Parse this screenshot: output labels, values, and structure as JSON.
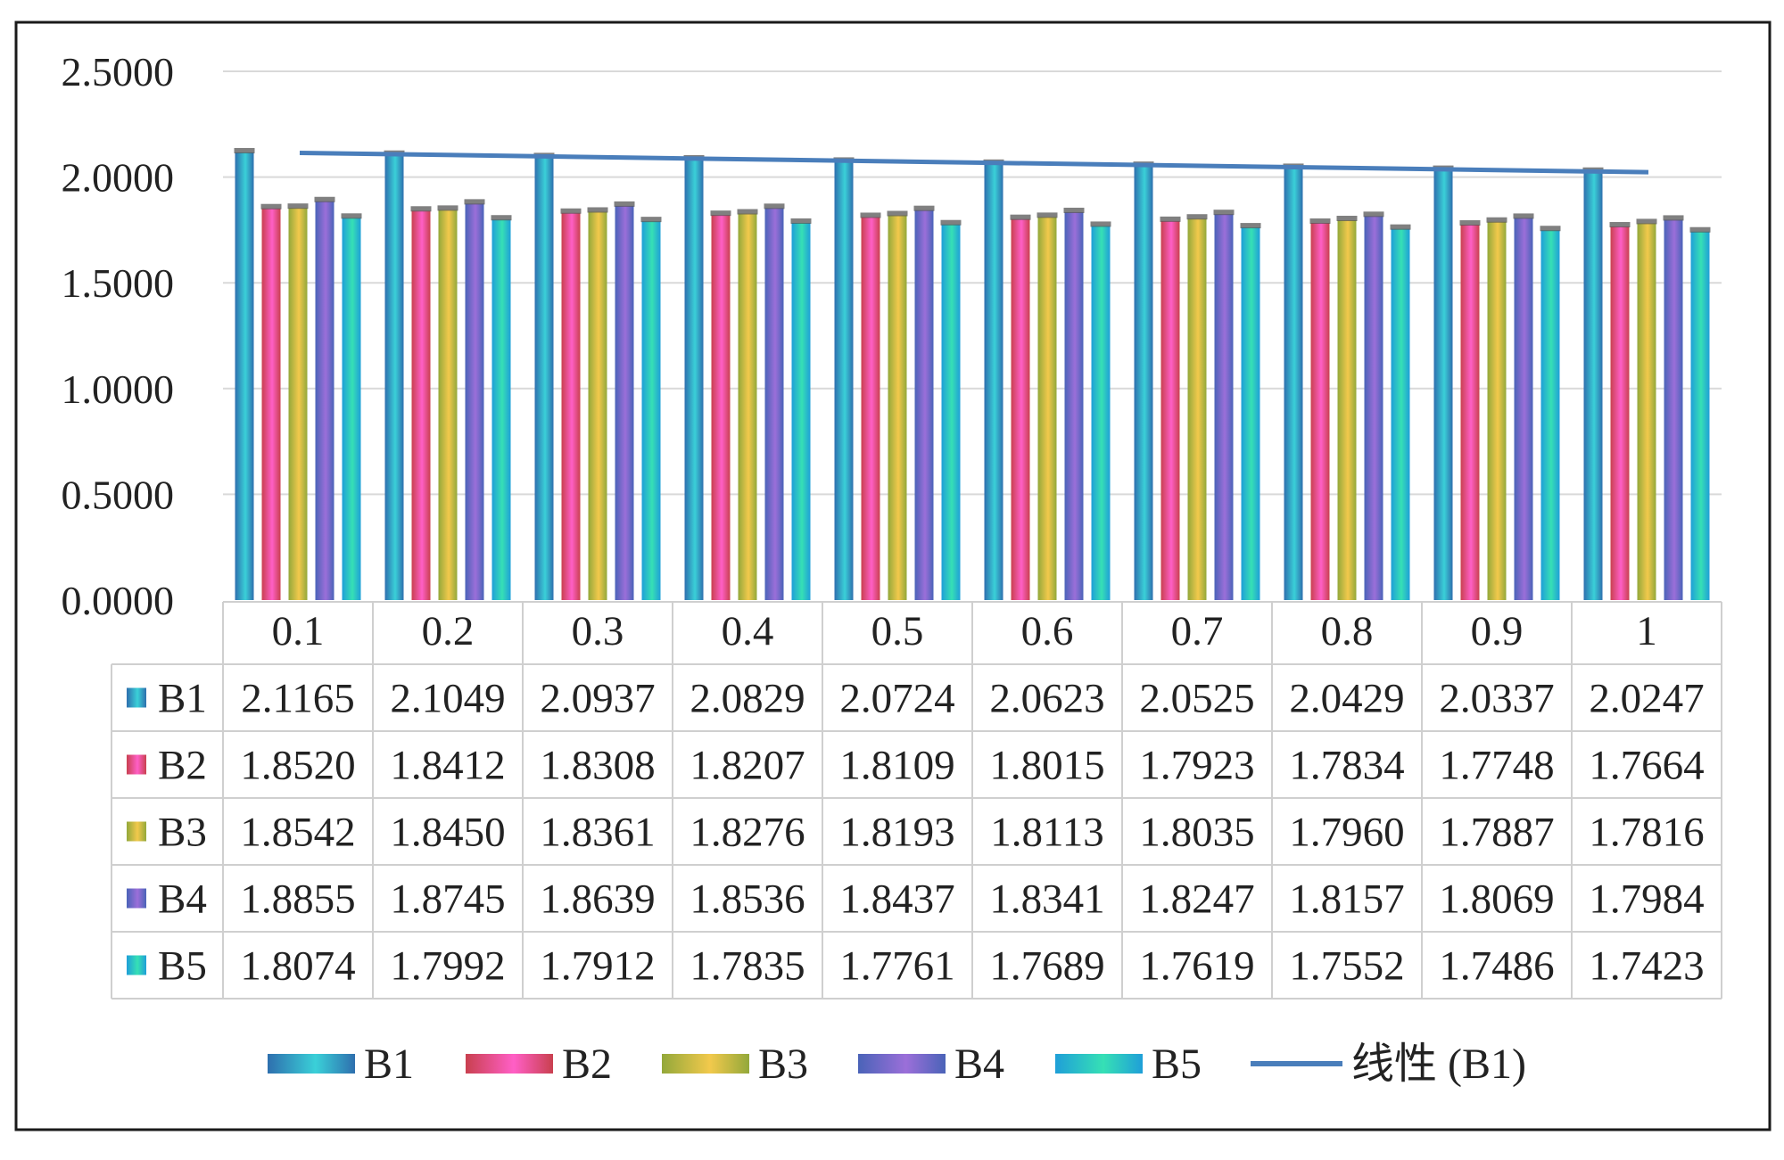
{
  "chart_data": {
    "type": "bar",
    "categories": [
      "0.1",
      "0.2",
      "0.3",
      "0.4",
      "0.5",
      "0.6",
      "0.7",
      "0.8",
      "0.9",
      "1"
    ],
    "series": [
      {
        "name": "B1",
        "values": [
          "2.1165",
          "2.1049",
          "2.0937",
          "2.0829",
          "2.0724",
          "2.0623",
          "2.0525",
          "2.0429",
          "2.0337",
          "2.0247"
        ]
      },
      {
        "name": "B2",
        "values": [
          "1.8520",
          "1.8412",
          "1.8308",
          "1.8207",
          "1.8109",
          "1.8015",
          "1.7923",
          "1.7834",
          "1.7748",
          "1.7664"
        ]
      },
      {
        "name": "B3",
        "values": [
          "1.8542",
          "1.8450",
          "1.8361",
          "1.8276",
          "1.8193",
          "1.8113",
          "1.8035",
          "1.7960",
          "1.7887",
          "1.7816"
        ]
      },
      {
        "name": "B4",
        "values": [
          "1.8855",
          "1.8745",
          "1.8639",
          "1.8536",
          "1.8437",
          "1.8341",
          "1.8247",
          "1.8157",
          "1.8069",
          "1.7984"
        ]
      },
      {
        "name": "B5",
        "values": [
          "1.8074",
          "1.7992",
          "1.7912",
          "1.7835",
          "1.7761",
          "1.7689",
          "1.7619",
          "1.7552",
          "1.7486",
          "1.7423"
        ]
      }
    ],
    "trendline": {
      "name": "线性 (B1)",
      "of_series": "B1",
      "kind": "linear",
      "color": "#4a7ebb"
    },
    "y_ticks": [
      "0.0000",
      "0.5000",
      "1.0000",
      "1.5000",
      "2.0000",
      "2.5000"
    ],
    "ylim": [
      0,
      2.5
    ],
    "title": "",
    "xlabel": "",
    "ylabel": "",
    "grid": true,
    "data_table": true,
    "legend_position": "bottom",
    "colors": {
      "B1": [
        "#3ad0d8",
        "#2e6fae"
      ],
      "B2": [
        "#ff5fc6",
        "#c9404f"
      ],
      "B3": [
        "#f2c94c",
        "#93a83a"
      ],
      "B4": [
        "#9b6fd9",
        "#4a63b8"
      ],
      "B5": [
        "#36e0b5",
        "#1f9fd8"
      ]
    }
  }
}
